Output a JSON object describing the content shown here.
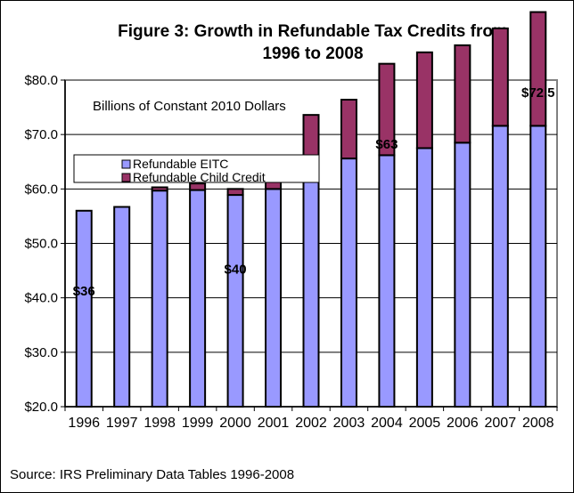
{
  "chart_data": {
    "type": "bar",
    "stacked": true,
    "title": "Figure 3: Growth in Refundable Tax Credits from 1996 to 2008",
    "title_lines": [
      "Figure 3: Growth in Refundable Tax Credits from",
      "1996 to 2008"
    ],
    "subtitle": "Billions of Constant 2010 Dollars",
    "xlabel": "",
    "ylabel": "",
    "ylim": [
      20,
      80
    ],
    "yticks": [
      20,
      30,
      40,
      50,
      60,
      70,
      80
    ],
    "ytick_labels": [
      "$20.0",
      "$30.0",
      "$40.0",
      "$50.0",
      "$60.0",
      "$70.0",
      "$80.0"
    ],
    "grid": true,
    "categories": [
      "1996",
      "1997",
      "1998",
      "1999",
      "2000",
      "2001",
      "2002",
      "2003",
      "2004",
      "2005",
      "2006",
      "2007",
      "2008"
    ],
    "series": [
      {
        "name": "Refundable EITC",
        "color": "#9999FF",
        "values": [
          36.0,
          36.7,
          39.7,
          39.8,
          38.9,
          40.0,
          45.7,
          45.6,
          46.2,
          47.5,
          48.5,
          51.6,
          51.6
        ]
      },
      {
        "name": "Refundable Child Credit",
        "color": "#993366",
        "values": [
          0,
          0,
          0.6,
          1.2,
          1.1,
          6.1,
          7.9,
          10.8,
          16.8,
          17.6,
          17.9,
          17.9,
          20.9
        ]
      }
    ],
    "legend": {
      "placement": "upper-left",
      "entries": [
        "Refundable EITC",
        "Refundable Child Credit"
      ]
    },
    "annotations": [
      {
        "category": "1996",
        "text": "$36"
      },
      {
        "category": "2000",
        "text": "$40"
      },
      {
        "category": "2004",
        "text": "$63"
      },
      {
        "category": "2008",
        "text": "$72.5"
      }
    ]
  },
  "source": "Source: IRS Preliminary Data Tables  1996-2008"
}
